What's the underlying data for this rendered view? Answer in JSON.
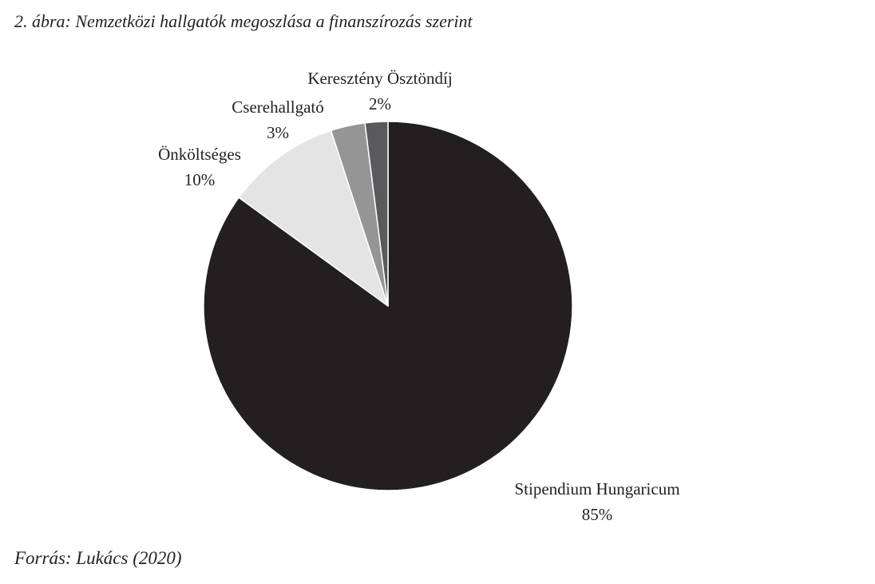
{
  "figure": {
    "caption": "2. ábra: Nemzetközi hallgatók megoszlása a finanszírozás szerint",
    "source": "Forrás: Lukács (2020)"
  },
  "chart_data": {
    "type": "pie",
    "title": "",
    "slices": [
      {
        "name": "Stipendium Hungaricum",
        "value": 85,
        "label": "85%",
        "color": "#231f20"
      },
      {
        "name": "Önköltséges",
        "value": 10,
        "label": "10%",
        "color": "#e4e4e4"
      },
      {
        "name": "Cserehallgató",
        "value": 3,
        "label": "3%",
        "color": "#959595"
      },
      {
        "name": "Keresztény Ösztöndíj",
        "value": 2,
        "label": "2%",
        "color": "#5a5a5c"
      }
    ],
    "start_angle": "12 o'clock",
    "direction": "clockwise",
    "legend": "none (labels placed next to slices)"
  }
}
